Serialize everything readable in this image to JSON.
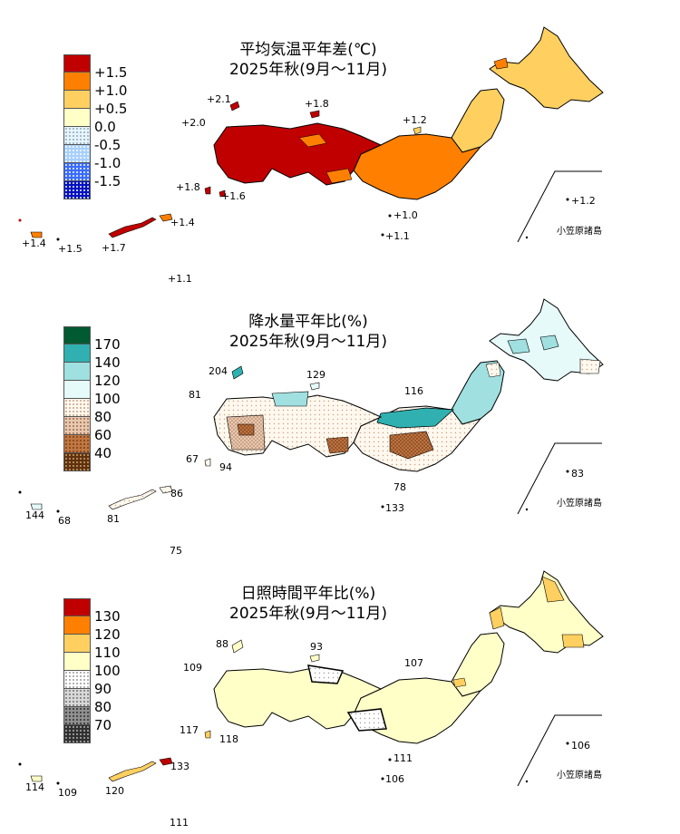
{
  "panels": [
    {
      "title": "平均気温平年差(℃)",
      "period": "2025年秋(9月～11月)",
      "legend": [
        "+1.5",
        "+1.0",
        "+0.5",
        "0.0",
        "-0.5",
        "-1.0",
        "-1.5"
      ],
      "legend_colors": [
        "#c00000",
        "#ff8000",
        "#ffd060",
        "#ffffc8",
        "#e6f4ff",
        "#a8d8ff",
        "#0030ff"
      ],
      "stations": [
        "+2.1",
        "+1.8",
        "+2.0",
        "+1.2",
        "+1.8",
        "+1.6",
        "+1.0",
        "+1.1",
        "+1.4",
        "+1.4",
        "+1.5",
        "+1.7",
        "+1.1",
        "+1.2"
      ],
      "ogasawara": "小笠原諸島"
    },
    {
      "title": "降水量平年比(%)",
      "period": "2025年秋(9月～11月)",
      "legend": [
        "170",
        "140",
        "120",
        "100",
        "80",
        "60",
        "40"
      ],
      "legend_colors": [
        "#005a32",
        "#30b0b0",
        "#a0e0e0",
        "#e6fafa",
        "#fff5e6",
        "#e8c8b0",
        "#c07840",
        "#603010"
      ],
      "stations": [
        "204",
        "129",
        "81",
        "116",
        "67",
        "94",
        "78",
        "133",
        "86",
        "144",
        "68",
        "81",
        "75",
        "83"
      ],
      "ogasawara": "小笠原諸島"
    },
    {
      "title": "日照時間平年比(%)",
      "period": "2025年秋(9月～11月)",
      "legend": [
        "130",
        "120",
        "110",
        "100",
        "90",
        "80",
        "70"
      ],
      "legend_colors": [
        "#c00000",
        "#ff8000",
        "#ffd060",
        "#ffffc8",
        "#ffffff",
        "#d0d0d0",
        "#a0a0a0",
        "#404040"
      ],
      "stations": [
        "88",
        "93",
        "109",
        "107",
        "117",
        "118",
        "111",
        "106",
        "133",
        "114",
        "109",
        "120",
        "111",
        "106"
      ],
      "ogasawara": "小笠原諸島"
    }
  ]
}
